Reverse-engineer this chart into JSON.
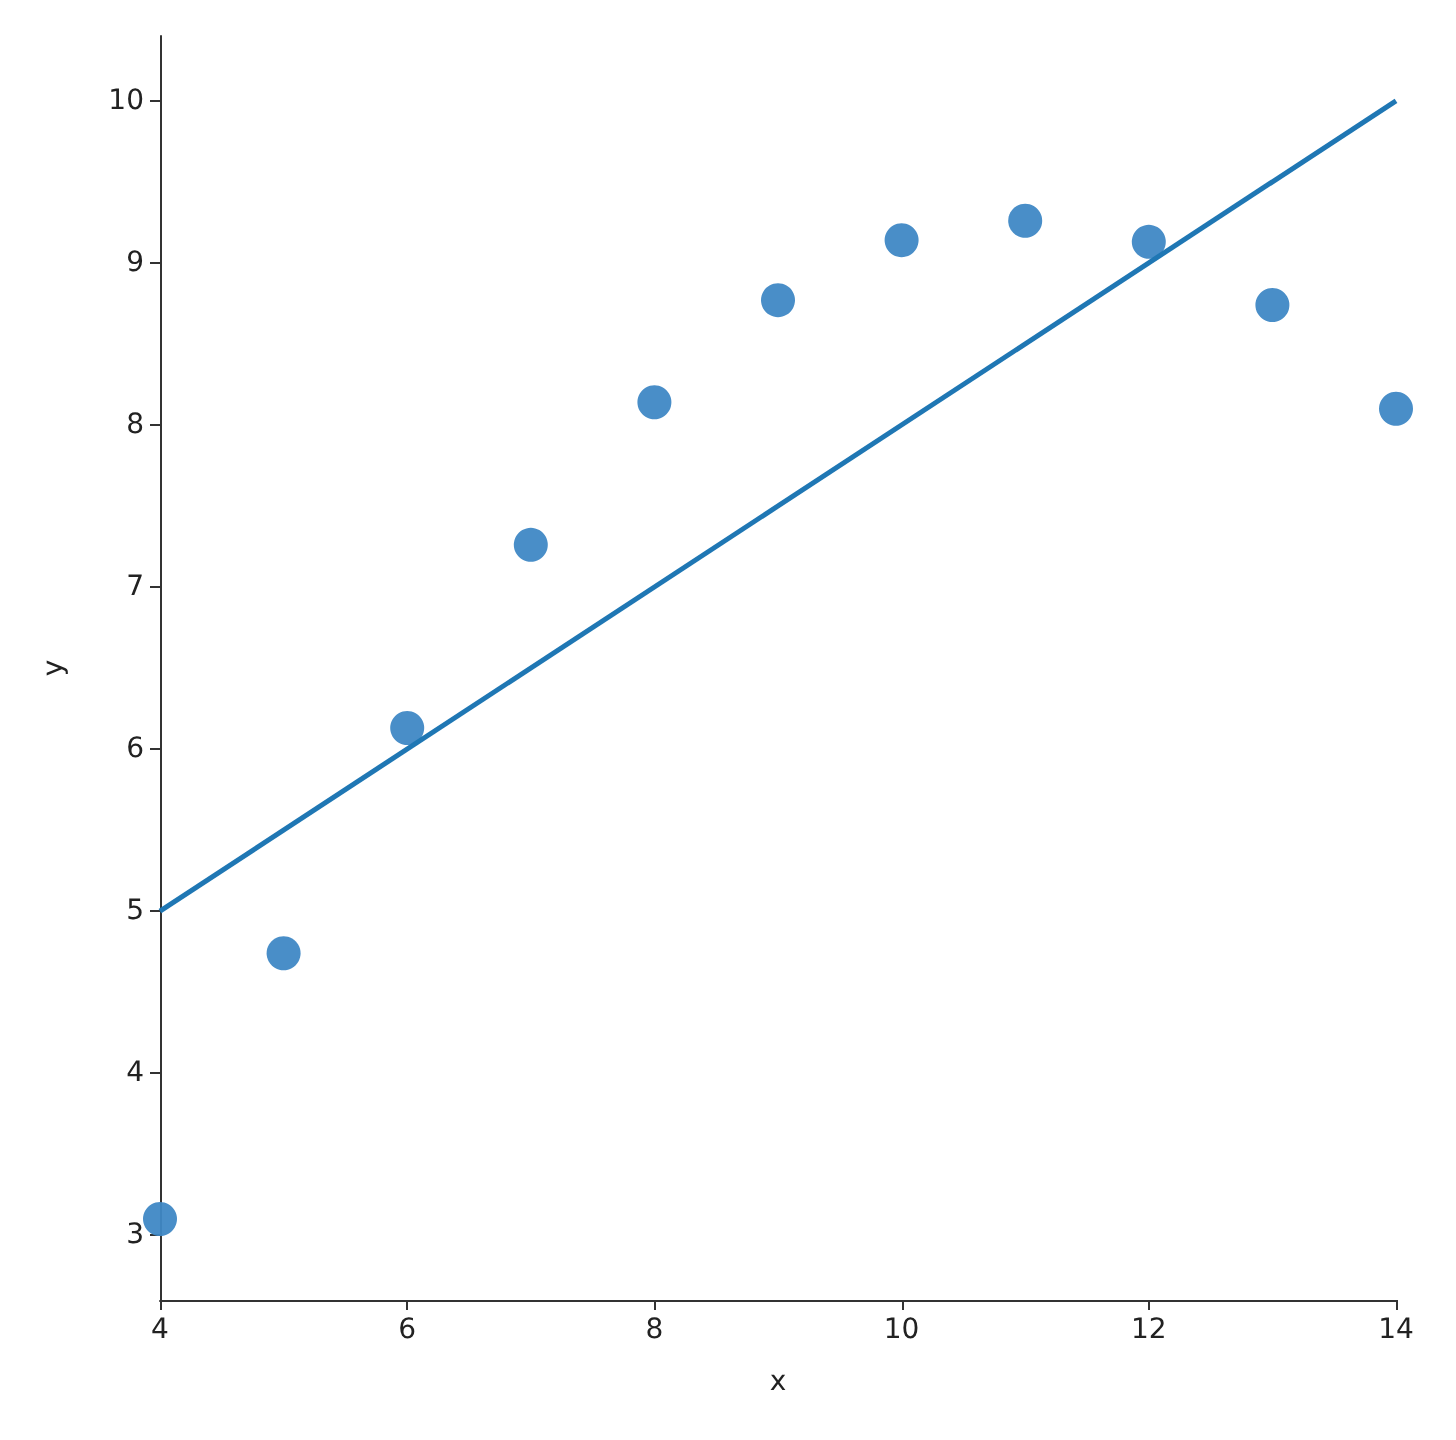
{
  "chart_data": {
    "type": "scatter",
    "xlabel": "x",
    "ylabel": "y",
    "xlim": [
      4,
      14
    ],
    "xticks": [
      4,
      6,
      8,
      10,
      12,
      14
    ],
    "ylim": [
      2.6,
      10.4
    ],
    "yticks": [
      3,
      4,
      5,
      6,
      7,
      8,
      9,
      10
    ],
    "grid": false,
    "marker": "circle",
    "series": [
      {
        "color": "#3f88c5",
        "x": [
          4,
          5,
          6,
          7,
          8,
          9,
          10,
          11,
          12,
          13,
          14
        ],
        "values": [
          3.1,
          4.74,
          6.13,
          7.26,
          8.14,
          8.77,
          9.14,
          9.26,
          9.13,
          8.74,
          8.1
        ]
      },
      {
        "type": "line",
        "color": "#1f77b4",
        "marker": "none",
        "x": [
          4,
          14
        ],
        "values": [
          5,
          10
        ]
      }
    ]
  }
}
